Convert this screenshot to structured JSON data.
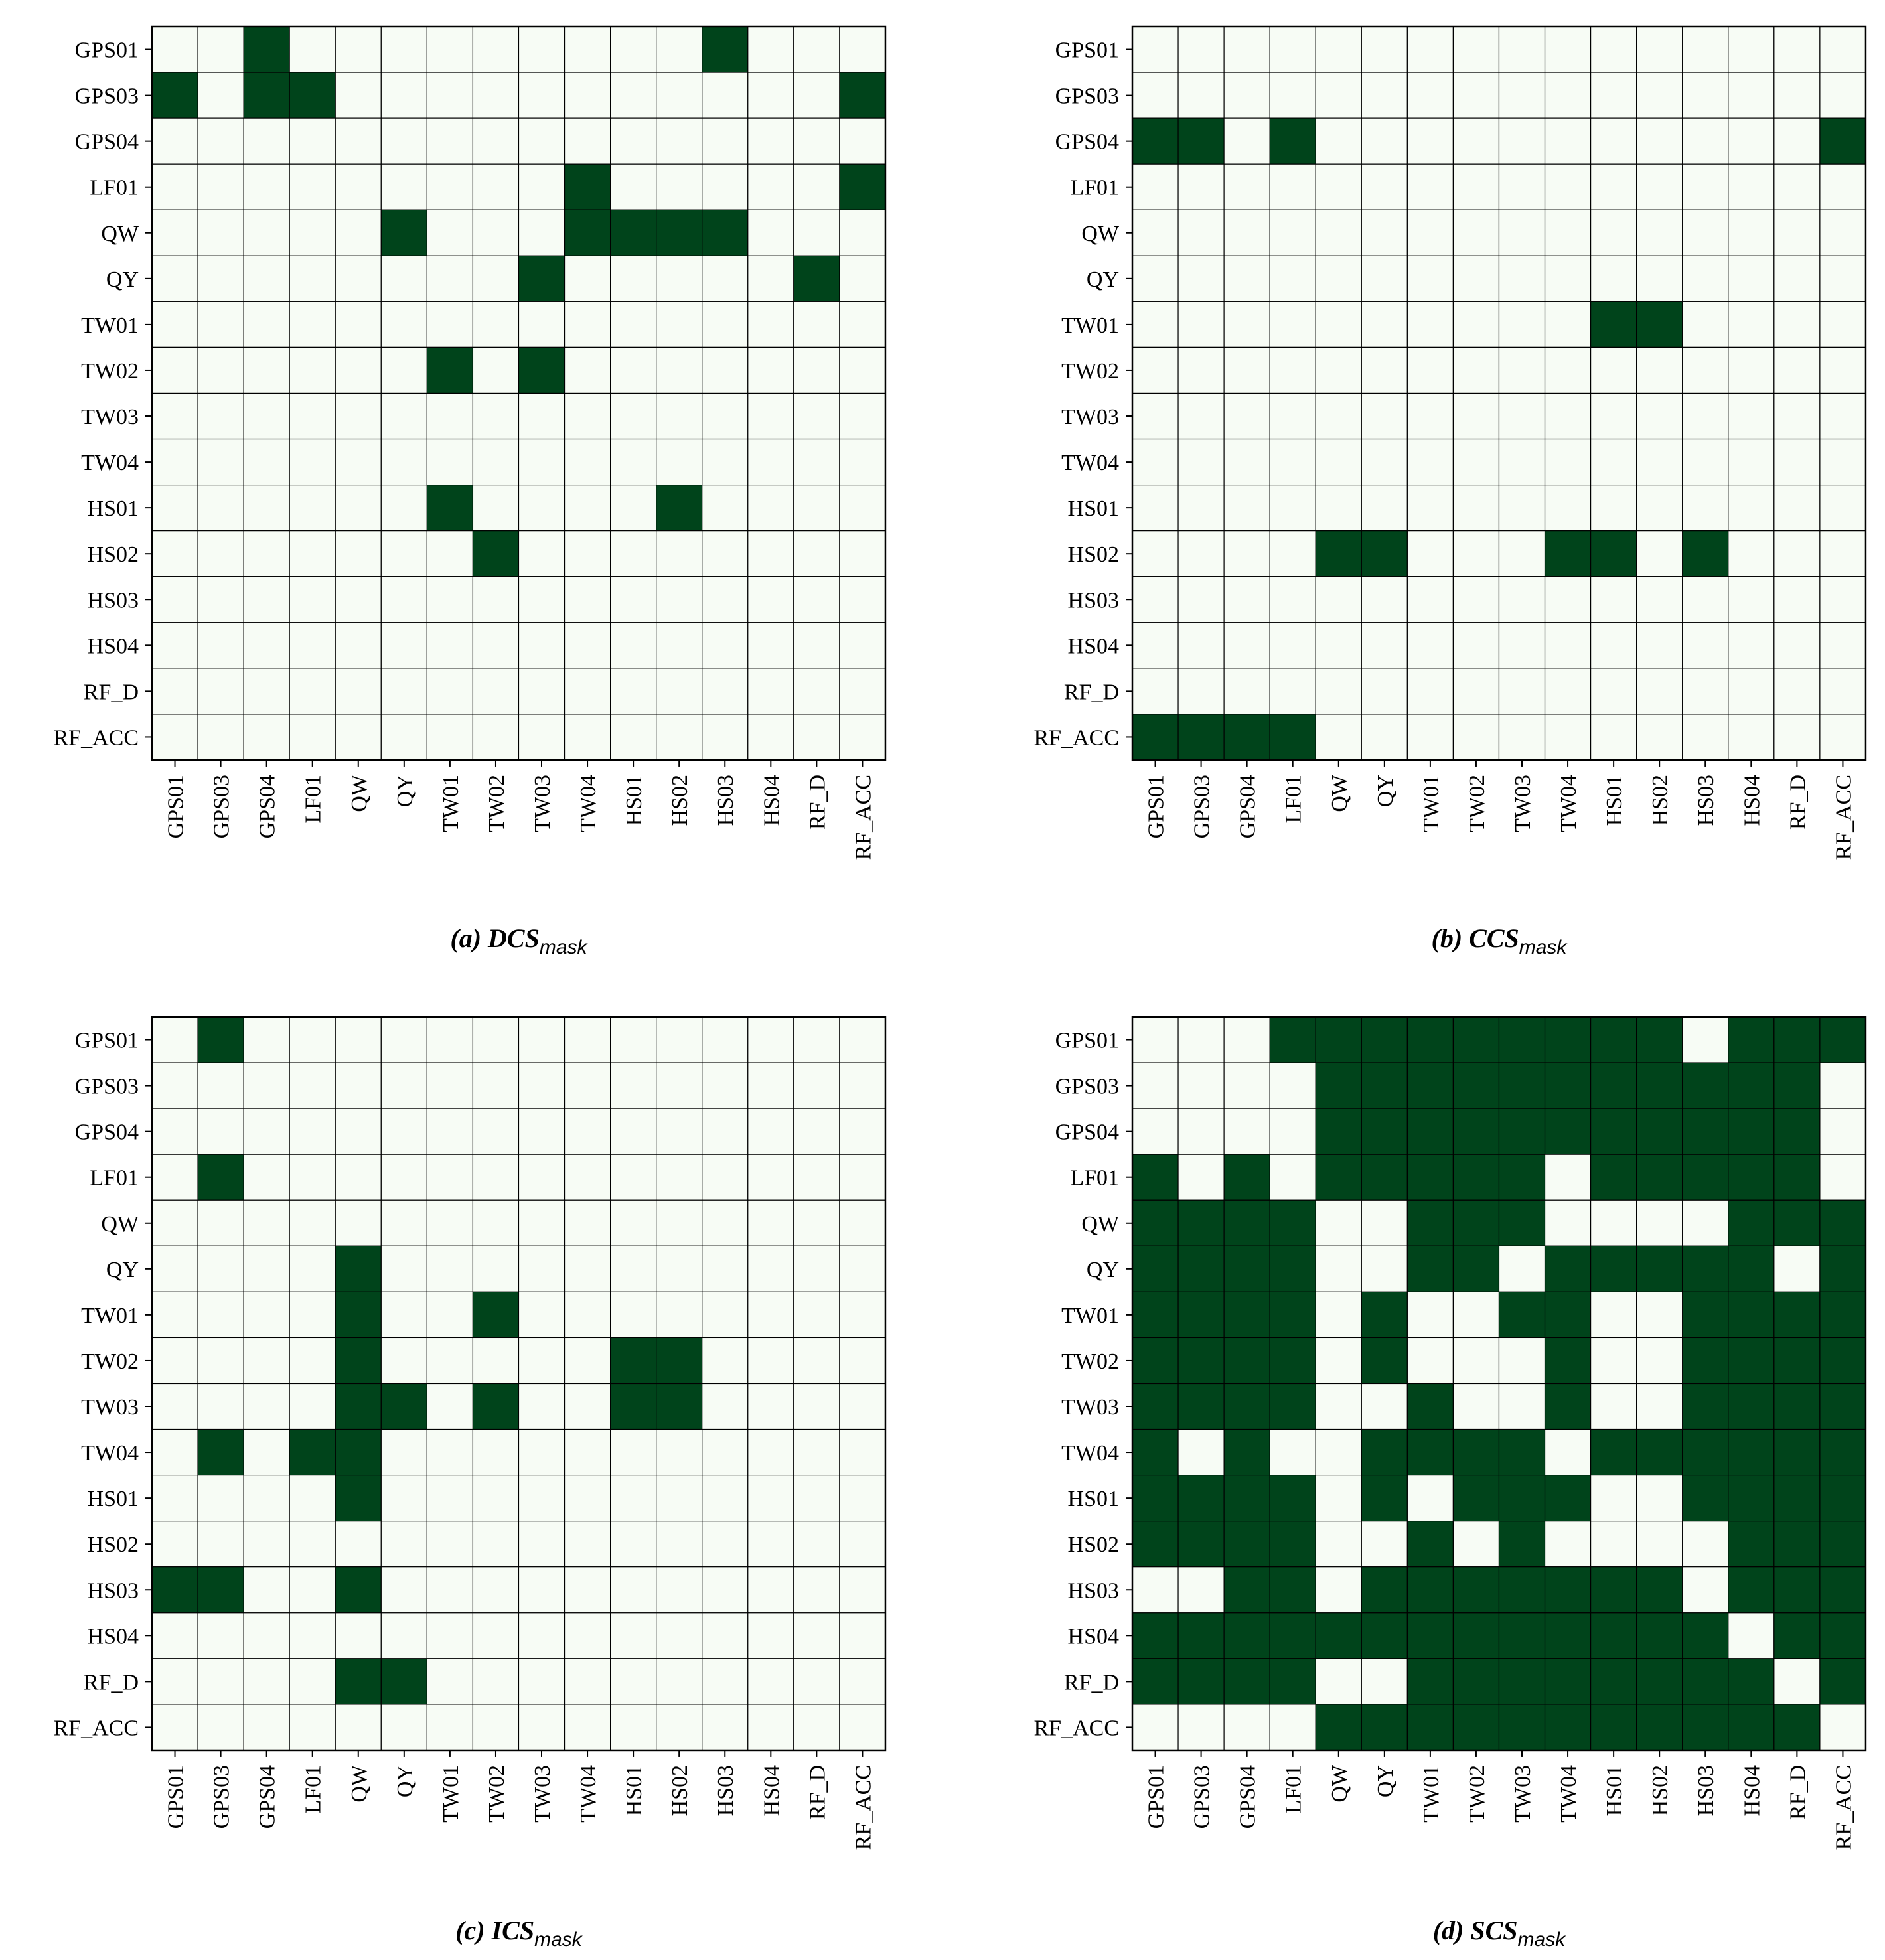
{
  "colors": {
    "on": "#00441b",
    "off": "#f7fcf5",
    "grid": "#000000"
  },
  "chart_data": [
    {
      "type": "heatmap",
      "caption_prefix": "(a) DCS",
      "caption_sub": "mask",
      "x_labels": [
        "GPS01",
        "GPS03",
        "GPS04",
        "LF01",
        "QW",
        "QY",
        "TW01",
        "TW02",
        "TW03",
        "TW04",
        "HS01",
        "HS02",
        "HS03",
        "HS04",
        "RF_D",
        "RF_ACC"
      ],
      "y_labels": [
        "GPS01",
        "GPS03",
        "GPS04",
        "LF01",
        "QW",
        "QY",
        "TW01",
        "TW02",
        "TW03",
        "TW04",
        "HS01",
        "HS02",
        "HS03",
        "HS04",
        "RF_D",
        "RF_ACC"
      ],
      "matrix": [
        [
          0,
          0,
          1,
          0,
          0,
          0,
          0,
          0,
          0,
          0,
          0,
          0,
          1,
          0,
          0,
          0
        ],
        [
          1,
          0,
          1,
          1,
          0,
          0,
          0,
          0,
          0,
          0,
          0,
          0,
          0,
          0,
          0,
          1
        ],
        [
          0,
          0,
          0,
          0,
          0,
          0,
          0,
          0,
          0,
          0,
          0,
          0,
          0,
          0,
          0,
          0
        ],
        [
          0,
          0,
          0,
          0,
          0,
          0,
          0,
          0,
          0,
          1,
          0,
          0,
          0,
          0,
          0,
          1
        ],
        [
          0,
          0,
          0,
          0,
          0,
          1,
          0,
          0,
          0,
          1,
          1,
          1,
          1,
          0,
          0,
          0
        ],
        [
          0,
          0,
          0,
          0,
          0,
          0,
          0,
          0,
          1,
          0,
          0,
          0,
          0,
          0,
          1,
          0
        ],
        [
          0,
          0,
          0,
          0,
          0,
          0,
          0,
          0,
          0,
          0,
          0,
          0,
          0,
          0,
          0,
          0
        ],
        [
          0,
          0,
          0,
          0,
          0,
          0,
          1,
          0,
          1,
          0,
          0,
          0,
          0,
          0,
          0,
          0
        ],
        [
          0,
          0,
          0,
          0,
          0,
          0,
          0,
          0,
          0,
          0,
          0,
          0,
          0,
          0,
          0,
          0
        ],
        [
          0,
          0,
          0,
          0,
          0,
          0,
          0,
          0,
          0,
          0,
          0,
          0,
          0,
          0,
          0,
          0
        ],
        [
          0,
          0,
          0,
          0,
          0,
          0,
          1,
          0,
          0,
          0,
          0,
          1,
          0,
          0,
          0,
          0
        ],
        [
          0,
          0,
          0,
          0,
          0,
          0,
          0,
          1,
          0,
          0,
          0,
          0,
          0,
          0,
          0,
          0
        ],
        [
          0,
          0,
          0,
          0,
          0,
          0,
          0,
          0,
          0,
          0,
          0,
          0,
          0,
          0,
          0,
          0
        ],
        [
          0,
          0,
          0,
          0,
          0,
          0,
          0,
          0,
          0,
          0,
          0,
          0,
          0,
          0,
          0,
          0
        ],
        [
          0,
          0,
          0,
          0,
          0,
          0,
          0,
          0,
          0,
          0,
          0,
          0,
          0,
          0,
          0,
          0
        ],
        [
          0,
          0,
          0,
          0,
          0,
          0,
          0,
          0,
          0,
          0,
          0,
          0,
          0,
          0,
          0,
          0
        ]
      ]
    },
    {
      "type": "heatmap",
      "caption_prefix": "(b) CCS",
      "caption_sub": "mask",
      "x_labels": [
        "GPS01",
        "GPS03",
        "GPS04",
        "LF01",
        "QW",
        "QY",
        "TW01",
        "TW02",
        "TW03",
        "TW04",
        "HS01",
        "HS02",
        "HS03",
        "HS04",
        "RF_D",
        "RF_ACC"
      ],
      "y_labels": [
        "GPS01",
        "GPS03",
        "GPS04",
        "LF01",
        "QW",
        "QY",
        "TW01",
        "TW02",
        "TW03",
        "TW04",
        "HS01",
        "HS02",
        "HS03",
        "HS04",
        "RF_D",
        "RF_ACC"
      ],
      "matrix": [
        [
          0,
          0,
          0,
          0,
          0,
          0,
          0,
          0,
          0,
          0,
          0,
          0,
          0,
          0,
          0,
          0
        ],
        [
          0,
          0,
          0,
          0,
          0,
          0,
          0,
          0,
          0,
          0,
          0,
          0,
          0,
          0,
          0,
          0
        ],
        [
          1,
          1,
          0,
          1,
          0,
          0,
          0,
          0,
          0,
          0,
          0,
          0,
          0,
          0,
          0,
          1
        ],
        [
          0,
          0,
          0,
          0,
          0,
          0,
          0,
          0,
          0,
          0,
          0,
          0,
          0,
          0,
          0,
          0
        ],
        [
          0,
          0,
          0,
          0,
          0,
          0,
          0,
          0,
          0,
          0,
          0,
          0,
          0,
          0,
          0,
          0
        ],
        [
          0,
          0,
          0,
          0,
          0,
          0,
          0,
          0,
          0,
          0,
          0,
          0,
          0,
          0,
          0,
          0
        ],
        [
          0,
          0,
          0,
          0,
          0,
          0,
          0,
          0,
          0,
          0,
          1,
          1,
          0,
          0,
          0,
          0
        ],
        [
          0,
          0,
          0,
          0,
          0,
          0,
          0,
          0,
          0,
          0,
          0,
          0,
          0,
          0,
          0,
          0
        ],
        [
          0,
          0,
          0,
          0,
          0,
          0,
          0,
          0,
          0,
          0,
          0,
          0,
          0,
          0,
          0,
          0
        ],
        [
          0,
          0,
          0,
          0,
          0,
          0,
          0,
          0,
          0,
          0,
          0,
          0,
          0,
          0,
          0,
          0
        ],
        [
          0,
          0,
          0,
          0,
          0,
          0,
          0,
          0,
          0,
          0,
          0,
          0,
          0,
          0,
          0,
          0
        ],
        [
          0,
          0,
          0,
          0,
          1,
          1,
          0,
          0,
          0,
          1,
          1,
          0,
          1,
          0,
          0,
          0
        ],
        [
          0,
          0,
          0,
          0,
          0,
          0,
          0,
          0,
          0,
          0,
          0,
          0,
          0,
          0,
          0,
          0
        ],
        [
          0,
          0,
          0,
          0,
          0,
          0,
          0,
          0,
          0,
          0,
          0,
          0,
          0,
          0,
          0,
          0
        ],
        [
          0,
          0,
          0,
          0,
          0,
          0,
          0,
          0,
          0,
          0,
          0,
          0,
          0,
          0,
          0,
          0
        ],
        [
          1,
          1,
          1,
          1,
          0,
          0,
          0,
          0,
          0,
          0,
          0,
          0,
          0,
          0,
          0,
          0
        ]
      ]
    },
    {
      "type": "heatmap",
      "caption_prefix": "(c) ICS",
      "caption_sub": "mask",
      "x_labels": [
        "GPS01",
        "GPS03",
        "GPS04",
        "LF01",
        "QW",
        "QY",
        "TW01",
        "TW02",
        "TW03",
        "TW04",
        "HS01",
        "HS02",
        "HS03",
        "HS04",
        "RF_D",
        "RF_ACC"
      ],
      "y_labels": [
        "GPS01",
        "GPS03",
        "GPS04",
        "LF01",
        "QW",
        "QY",
        "TW01",
        "TW02",
        "TW03",
        "TW04",
        "HS01",
        "HS02",
        "HS03",
        "HS04",
        "RF_D",
        "RF_ACC"
      ],
      "matrix": [
        [
          0,
          1,
          0,
          0,
          0,
          0,
          0,
          0,
          0,
          0,
          0,
          0,
          0,
          0,
          0,
          0
        ],
        [
          0,
          0,
          0,
          0,
          0,
          0,
          0,
          0,
          0,
          0,
          0,
          0,
          0,
          0,
          0,
          0
        ],
        [
          0,
          0,
          0,
          0,
          0,
          0,
          0,
          0,
          0,
          0,
          0,
          0,
          0,
          0,
          0,
          0
        ],
        [
          0,
          1,
          0,
          0,
          0,
          0,
          0,
          0,
          0,
          0,
          0,
          0,
          0,
          0,
          0,
          0
        ],
        [
          0,
          0,
          0,
          0,
          0,
          0,
          0,
          0,
          0,
          0,
          0,
          0,
          0,
          0,
          0,
          0
        ],
        [
          0,
          0,
          0,
          0,
          1,
          0,
          0,
          0,
          0,
          0,
          0,
          0,
          0,
          0,
          0,
          0
        ],
        [
          0,
          0,
          0,
          0,
          1,
          0,
          0,
          1,
          0,
          0,
          0,
          0,
          0,
          0,
          0,
          0
        ],
        [
          0,
          0,
          0,
          0,
          1,
          0,
          0,
          0,
          0,
          0,
          1,
          1,
          0,
          0,
          0,
          0
        ],
        [
          0,
          0,
          0,
          0,
          1,
          1,
          0,
          1,
          0,
          0,
          1,
          1,
          0,
          0,
          0,
          0
        ],
        [
          0,
          1,
          0,
          1,
          1,
          0,
          0,
          0,
          0,
          0,
          0,
          0,
          0,
          0,
          0,
          0
        ],
        [
          0,
          0,
          0,
          0,
          1,
          0,
          0,
          0,
          0,
          0,
          0,
          0,
          0,
          0,
          0,
          0
        ],
        [
          0,
          0,
          0,
          0,
          0,
          0,
          0,
          0,
          0,
          0,
          0,
          0,
          0,
          0,
          0,
          0
        ],
        [
          1,
          1,
          0,
          0,
          1,
          0,
          0,
          0,
          0,
          0,
          0,
          0,
          0,
          0,
          0,
          0
        ],
        [
          0,
          0,
          0,
          0,
          0,
          0,
          0,
          0,
          0,
          0,
          0,
          0,
          0,
          0,
          0,
          0
        ],
        [
          0,
          0,
          0,
          0,
          1,
          1,
          0,
          0,
          0,
          0,
          0,
          0,
          0,
          0,
          0,
          0
        ],
        [
          0,
          0,
          0,
          0,
          0,
          0,
          0,
          0,
          0,
          0,
          0,
          0,
          0,
          0,
          0,
          0
        ]
      ]
    },
    {
      "type": "heatmap",
      "caption_prefix": "(d) SCS",
      "caption_sub": "mask",
      "x_labels": [
        "GPS01",
        "GPS03",
        "GPS04",
        "LF01",
        "QW",
        "QY",
        "TW01",
        "TW02",
        "TW03",
        "TW04",
        "HS01",
        "HS02",
        "HS03",
        "HS04",
        "RF_D",
        "RF_ACC"
      ],
      "y_labels": [
        "GPS01",
        "GPS03",
        "GPS04",
        "LF01",
        "QW",
        "QY",
        "TW01",
        "TW02",
        "TW03",
        "TW04",
        "HS01",
        "HS02",
        "HS03",
        "HS04",
        "RF_D",
        "RF_ACC"
      ],
      "matrix": [
        [
          0,
          0,
          0,
          1,
          1,
          1,
          1,
          1,
          1,
          1,
          1,
          1,
          0,
          1,
          1,
          1
        ],
        [
          0,
          0,
          0,
          0,
          1,
          1,
          1,
          1,
          1,
          1,
          1,
          1,
          1,
          1,
          1,
          0
        ],
        [
          0,
          0,
          0,
          0,
          1,
          1,
          1,
          1,
          1,
          1,
          1,
          1,
          1,
          1,
          1,
          0
        ],
        [
          1,
          0,
          1,
          0,
          1,
          1,
          1,
          1,
          1,
          0,
          1,
          1,
          1,
          1,
          1,
          0
        ],
        [
          1,
          1,
          1,
          1,
          0,
          0,
          1,
          1,
          1,
          0,
          0,
          0,
          0,
          1,
          1,
          1
        ],
        [
          1,
          1,
          1,
          1,
          0,
          0,
          1,
          1,
          0,
          1,
          1,
          1,
          1,
          1,
          0,
          1
        ],
        [
          1,
          1,
          1,
          1,
          0,
          1,
          0,
          0,
          1,
          1,
          0,
          0,
          1,
          1,
          1,
          1
        ],
        [
          1,
          1,
          1,
          1,
          0,
          1,
          0,
          0,
          0,
          1,
          0,
          0,
          1,
          1,
          1,
          1
        ],
        [
          1,
          1,
          1,
          1,
          0,
          0,
          1,
          0,
          0,
          1,
          0,
          0,
          1,
          1,
          1,
          1
        ],
        [
          1,
          0,
          1,
          0,
          0,
          1,
          1,
          1,
          1,
          0,
          1,
          1,
          1,
          1,
          1,
          1
        ],
        [
          1,
          1,
          1,
          1,
          0,
          1,
          0,
          1,
          1,
          1,
          0,
          0,
          1,
          1,
          1,
          1
        ],
        [
          1,
          1,
          1,
          1,
          0,
          0,
          1,
          0,
          1,
          0,
          0,
          0,
          0,
          1,
          1,
          1
        ],
        [
          0,
          0,
          1,
          1,
          0,
          1,
          1,
          1,
          1,
          1,
          1,
          1,
          0,
          1,
          1,
          1
        ],
        [
          1,
          1,
          1,
          1,
          1,
          1,
          1,
          1,
          1,
          1,
          1,
          1,
          1,
          0,
          1,
          1
        ],
        [
          1,
          1,
          1,
          1,
          0,
          0,
          1,
          1,
          1,
          1,
          1,
          1,
          1,
          1,
          0,
          1
        ],
        [
          0,
          0,
          0,
          0,
          1,
          1,
          1,
          1,
          1,
          1,
          1,
          1,
          1,
          1,
          1,
          0
        ]
      ]
    }
  ]
}
